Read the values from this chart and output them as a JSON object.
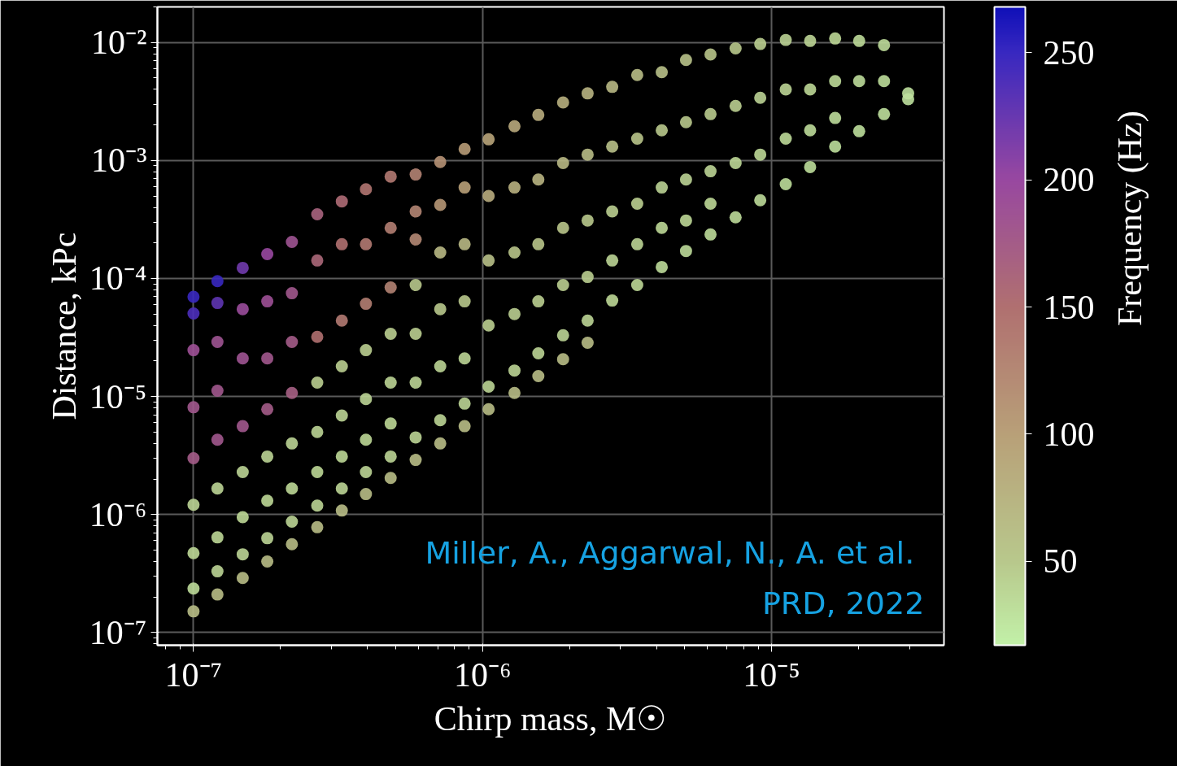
{
  "chart_data": {
    "type": "scatter",
    "xlabel": "Chirp mass, M☉",
    "ylabel": "Distance, kPc",
    "clabel": "Frequency (Hz)",
    "log": "xy",
    "grid": true,
    "marker": "circle",
    "xlim": [
      7.5e-08,
      3.95e-05
    ],
    "ylim": [
      7.8e-08,
      0.02
    ],
    "xticks": [
      {
        "value": 1e-07,
        "label": "10⁻⁷"
      },
      {
        "value": 1e-06,
        "label": "10⁻⁶"
      },
      {
        "value": 1e-05,
        "label": "10⁻⁵"
      }
    ],
    "yticks": [
      {
        "value": 1e-07,
        "label": "10⁻⁷"
      },
      {
        "value": 1e-06,
        "label": "10⁻⁶"
      },
      {
        "value": 1e-05,
        "label": "10⁻⁵"
      },
      {
        "value": 0.0001,
        "label": "10⁻⁴"
      },
      {
        "value": 0.001,
        "label": "10⁻³"
      },
      {
        "value": 0.01,
        "label": "10⁻²"
      }
    ],
    "clim": [
      17,
      268
    ],
    "cticks": [
      50,
      100,
      150,
      200,
      250
    ],
    "annotations": [
      "Miller, A.,  Aggarwal, N., A. et al.",
      "PRD, 2022"
    ],
    "x": [
      1e-07,
      1e-07,
      1e-07,
      1e-07,
      1e-07,
      1e-07,
      1e-07,
      1e-07,
      1e-07,
      1.21e-07,
      1.21e-07,
      1.21e-07,
      1.21e-07,
      1.21e-07,
      1.21e-07,
      1.21e-07,
      1.21e-07,
      1.21e-07,
      1.48e-07,
      1.48e-07,
      1.48e-07,
      1.48e-07,
      1.48e-07,
      1.48e-07,
      1.48e-07,
      1.48e-07,
      1.8e-07,
      1.8e-07,
      1.8e-07,
      1.8e-07,
      1.8e-07,
      1.8e-07,
      1.8e-07,
      1.8e-07,
      2.19e-07,
      2.19e-07,
      2.19e-07,
      2.19e-07,
      2.19e-07,
      2.19e-07,
      2.19e-07,
      2.19e-07,
      2.68e-07,
      2.68e-07,
      2.68e-07,
      2.68e-07,
      2.68e-07,
      2.68e-07,
      2.68e-07,
      2.68e-07,
      3.26e-07,
      3.26e-07,
      3.26e-07,
      3.26e-07,
      3.26e-07,
      3.26e-07,
      3.26e-07,
      3.26e-07,
      3.95e-07,
      3.95e-07,
      3.95e-07,
      3.95e-07,
      3.95e-07,
      3.95e-07,
      3.95e-07,
      3.95e-07,
      4.81e-07,
      4.81e-07,
      4.81e-07,
      4.81e-07,
      4.81e-07,
      4.81e-07,
      4.81e-07,
      4.81e-07,
      5.87e-07,
      5.87e-07,
      5.87e-07,
      5.87e-07,
      5.87e-07,
      5.87e-07,
      5.87e-07,
      5.87e-07,
      7.14e-07,
      7.14e-07,
      7.14e-07,
      7.14e-07,
      7.14e-07,
      7.14e-07,
      7.14e-07,
      8.67e-07,
      8.67e-07,
      8.67e-07,
      8.67e-07,
      8.67e-07,
      8.67e-07,
      8.67e-07,
      1.05e-06,
      1.05e-06,
      1.05e-06,
      1.05e-06,
      1.05e-06,
      1.05e-06,
      1.29e-06,
      1.29e-06,
      1.29e-06,
      1.29e-06,
      1.29e-06,
      1.29e-06,
      1.56e-06,
      1.56e-06,
      1.56e-06,
      1.56e-06,
      1.56e-06,
      1.56e-06,
      1.9e-06,
      1.9e-06,
      1.9e-06,
      1.9e-06,
      1.9e-06,
      1.9e-06,
      2.31e-06,
      2.31e-06,
      2.31e-06,
      2.31e-06,
      2.31e-06,
      2.31e-06,
      2.81e-06,
      2.81e-06,
      2.81e-06,
      2.81e-06,
      2.81e-06,
      3.43e-06,
      3.43e-06,
      3.43e-06,
      3.43e-06,
      3.43e-06,
      4.17e-06,
      4.17e-06,
      4.17e-06,
      4.17e-06,
      4.17e-06,
      5.06e-06,
      5.06e-06,
      5.06e-06,
      5.06e-06,
      5.06e-06,
      6.15e-06,
      6.15e-06,
      6.15e-06,
      6.15e-06,
      6.15e-06,
      7.51e-06,
      7.51e-06,
      7.51e-06,
      7.51e-06,
      9.14e-06,
      9.14e-06,
      9.14e-06,
      9.14e-06,
      1.12e-05,
      1.12e-05,
      1.12e-05,
      1.12e-05,
      1.36e-05,
      1.36e-05,
      1.36e-05,
      1.36e-05,
      1.66e-05,
      1.66e-05,
      1.66e-05,
      1.66e-05,
      2.01e-05,
      2.01e-05,
      2.01e-05,
      2.45e-05,
      2.45e-05,
      2.45e-05,
      2.97e-05,
      2.97e-05
    ],
    "values": [
      7e-05,
      5.05e-05,
      2.47e-05,
      8.1e-06,
      3e-06,
      1.21e-06,
      4.7e-07,
      2.36e-07,
      1.51e-07,
      9.5e-05,
      6.2e-05,
      2.9e-05,
      1.12e-05,
      4.3e-06,
      1.66e-06,
      6.4e-07,
      3.3e-07,
      2.1e-07,
      0.000123,
      5.5e-05,
      2.1e-05,
      5.6e-06,
      2.29e-06,
      9.5e-07,
      4.6e-07,
      2.9e-07,
      0.000161,
      6.4e-05,
      2.1e-05,
      7.8e-06,
      3.1e-06,
      1.31e-06,
      6.3e-07,
      4e-07,
      0.000204,
      7.5e-05,
      2.9e-05,
      1.07e-05,
      4e-06,
      1.66e-06,
      8.7e-07,
      5.6e-07,
      0.00035,
      0.000142,
      3.2e-05,
      1.31e-05,
      5e-06,
      2.29e-06,
      1.19e-06,
      7.8e-07,
      0.00045,
      0.000195,
      4.4e-05,
      1.8e-05,
      6.9e-06,
      3.1e-06,
      1.66e-06,
      1.08e-06,
      0.00057,
      0.000195,
      6.1e-05,
      2.47e-05,
      9.5e-06,
      4.3e-06,
      2.29e-06,
      1.49e-06,
      0.00073,
      0.000268,
      8.4e-05,
      3.4e-05,
      1.31e-05,
      5.9e-06,
      3.1e-06,
      2.04e-06,
      0.00076,
      0.00037,
      0.000214,
      8.8e-05,
      3.4e-05,
      1.31e-05,
      4.5e-06,
      2.9e-06,
      0.00097,
      0.00042,
      0.000166,
      5.5e-05,
      1.8e-05,
      6.3e-06,
      4e-06,
      0.00125,
      0.00059,
      0.000195,
      6.4e-05,
      2.1e-05,
      8.7e-06,
      5.6e-06,
      0.00151,
      0.0005,
      0.000142,
      4e-05,
      1.21e-05,
      7.8e-06,
      0.00195,
      0.00059,
      0.000166,
      5e-05,
      1.66e-05,
      1.07e-05,
      0.00243,
      0.00069,
      0.000195,
      6.4e-05,
      2.32e-05,
      1.49e-05,
      0.0031,
      0.00095,
      0.000268,
      8.8e-05,
      3.3e-05,
      2.07e-05,
      0.0037,
      0.00112,
      0.00031,
      0.000103,
      4.4e-05,
      2.85e-05,
      0.0042,
      0.00131,
      0.00037,
      0.000142,
      6.5e-05,
      0.0053,
      0.00153,
      0.00043,
      0.000195,
      8.8e-05,
      0.0056,
      0.0018,
      0.00059,
      0.000268,
      0.000125,
      0.0071,
      0.00211,
      0.00069,
      0.00031,
      0.000171,
      0.0079,
      0.00247,
      0.00081,
      0.00043,
      0.000236,
      0.0089,
      0.0029,
      0.00095,
      0.00033,
      0.0097,
      0.0034,
      0.00112,
      0.00046,
      0.0105,
      0.004,
      0.00153,
      0.00063,
      0.0103,
      0.004,
      0.0018,
      0.00088,
      0.0108,
      0.0047,
      0.00229,
      0.00131,
      0.0103,
      0.0047,
      0.00177,
      0.0095,
      0.0047,
      0.00247,
      0.0037,
      0.0033
    ],
    "cvalues": [
      250,
      240,
      190,
      180,
      175,
      40,
      38,
      35,
      65,
      250,
      230,
      185,
      180,
      180,
      40,
      38,
      40,
      65,
      220,
      195,
      185,
      180,
      40,
      38,
      40,
      65,
      200,
      190,
      180,
      175,
      40,
      38,
      40,
      65,
      185,
      180,
      175,
      170,
      40,
      38,
      40,
      65,
      165,
      160,
      150,
      45,
      40,
      38,
      40,
      65,
      155,
      150,
      140,
      45,
      40,
      38,
      40,
      65,
      145,
      140,
      135,
      45,
      40,
      38,
      40,
      65,
      140,
      135,
      130,
      45,
      40,
      38,
      40,
      65,
      130,
      128,
      125,
      50,
      45,
      40,
      40,
      65,
      115,
      110,
      70,
      50,
      40,
      40,
      65,
      105,
      100,
      70,
      50,
      40,
      40,
      65,
      95,
      85,
      60,
      45,
      40,
      65,
      90,
      80,
      55,
      45,
      40,
      65,
      85,
      75,
      55,
      45,
      40,
      65,
      80,
      70,
      55,
      45,
      40,
      65,
      75,
      65,
      50,
      45,
      40,
      65,
      70,
      60,
      45,
      40,
      38,
      65,
      55,
      45,
      40,
      38,
      60,
      50,
      42,
      38,
      35,
      58,
      50,
      42,
      38,
      35,
      55,
      48,
      40,
      38,
      35,
      50,
      45,
      38,
      35,
      45,
      42,
      38,
      35,
      42,
      40,
      36,
      33,
      40,
      38,
      35,
      33,
      38,
      36,
      34,
      32,
      36,
      34,
      32,
      35,
      33,
      31,
      30,
      30
    ]
  }
}
